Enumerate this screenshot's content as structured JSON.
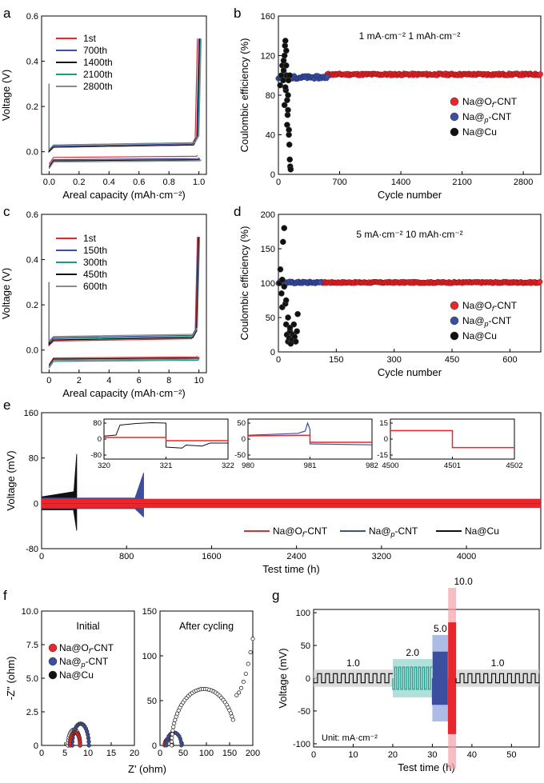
{
  "figure": {
    "panels": [
      "a",
      "b",
      "c",
      "d",
      "e",
      "f",
      "g"
    ]
  },
  "chart_data": [
    {
      "id": "a",
      "type": "line",
      "xlabel": "Areal capacity (mAh·cm⁻²)",
      "ylabel": "Voltage (V)",
      "xlim": [
        -0.05,
        1.05
      ],
      "ylim": [
        -0.1,
        0.6
      ],
      "xticks": [
        0.0,
        0.2,
        0.4,
        0.6,
        0.8,
        1.0
      ],
      "xtick_labels": [
        "0.0",
        "0.2",
        "0.4",
        "0.6",
        "0.8",
        "1.0"
      ],
      "yticks": [
        0.0,
        0.2,
        0.4,
        0.6
      ],
      "ytick_labels": [
        "0.0",
        "0.2",
        "0.4",
        "0.6"
      ],
      "legend": "top-left",
      "series": [
        {
          "name": "1st",
          "color": "#e8262b",
          "plating": -0.025,
          "stripping": 0.02,
          "end": 0.99
        },
        {
          "name": "700th",
          "color": "#3b4ea0",
          "plating": -0.035,
          "stripping": 0.025,
          "end": 1.0
        },
        {
          "name": "1400th",
          "color": "#111111",
          "plating": -0.04,
          "stripping": 0.02,
          "end": 1.005
        },
        {
          "name": "2100th",
          "color": "#1a9a8a",
          "plating": -0.045,
          "stripping": 0.03,
          "end": 1.01
        },
        {
          "name": "2800th",
          "color": "#8a8a8a",
          "plating": -0.045,
          "stripping": 0.03,
          "end": 1.015
        }
      ]
    },
    {
      "id": "b",
      "type": "scatter",
      "xlabel": "Cycle number",
      "ylabel": "Coulombic efficiency (%)",
      "xlim": [
        0,
        3000
      ],
      "ylim": [
        0,
        160
      ],
      "xticks": [
        0,
        700,
        1400,
        2100,
        2800
      ],
      "xtick_labels": [
        "0",
        "700",
        "1400",
        "2100",
        "2800"
      ],
      "yticks": [
        0,
        40,
        80,
        120,
        160
      ],
      "ytick_labels": [
        "0",
        "40",
        "80",
        "120",
        "160"
      ],
      "annotation": "1 mA·cm⁻²  1 mAh·cm⁻²",
      "legend": "bottom-right",
      "series": [
        {
          "name_main": "Na@O",
          "name_sub": "f",
          "name_tail": "-CNT",
          "color": "#e8262b",
          "x_range": [
            560,
            3000
          ],
          "y": 101
        },
        {
          "name_main": "Na@",
          "name_sub": "p",
          "name_tail": "-CNT",
          "italic_main": "p",
          "color": "#3b4ea0",
          "x_range": [
            0,
            560
          ],
          "y": 98
        },
        {
          "name_main": "Na@Cu",
          "color": "#111111",
          "x": [
            20,
            35,
            45,
            55,
            60,
            70,
            75,
            80,
            85,
            90,
            95,
            100,
            105,
            110,
            115,
            120,
            125,
            130,
            135,
            140,
            60,
            70,
            80,
            90,
            100,
            110,
            120,
            130
          ],
          "y": [
            90,
            100,
            110,
            95,
            105,
            120,
            130,
            135,
            85,
            110,
            100,
            75,
            60,
            80,
            95,
            40,
            30,
            15,
            8,
            5,
            115,
            70,
            88,
            125,
            50,
            65,
            45,
            100
          ]
        }
      ]
    },
    {
      "id": "c",
      "type": "line",
      "xlabel": "Areal capacity (mAh·cm⁻²)",
      "ylabel": "Voltage (V)",
      "xlim": [
        -0.5,
        10.5
      ],
      "ylim": [
        -0.1,
        0.6
      ],
      "xticks": [
        0,
        2,
        4,
        6,
        8,
        10
      ],
      "xtick_labels": [
        "0",
        "2",
        "4",
        "6",
        "8",
        "10"
      ],
      "yticks": [
        0.0,
        0.2,
        0.4,
        0.6
      ],
      "ytick_labels": [
        "0.0",
        "0.2",
        "0.4",
        "0.6"
      ],
      "legend": "top-left",
      "series": [
        {
          "name": "1st",
          "color": "#e8262b",
          "plating": -0.035,
          "stripping": 0.04,
          "end": 9.9
        },
        {
          "name": "150th",
          "color": "#3b4ea0",
          "plating": -0.045,
          "stripping": 0.055,
          "end": 9.95
        },
        {
          "name": "300th",
          "color": "#1a9a8a",
          "plating": -0.05,
          "stripping": 0.05,
          "end": 10.0
        },
        {
          "name": "450th",
          "color": "#111111",
          "plating": -0.04,
          "stripping": 0.045,
          "end": 10.0
        },
        {
          "name": "600th",
          "color": "#8a8a8a",
          "plating": -0.045,
          "stripping": 0.06,
          "end": 10.05
        }
      ]
    },
    {
      "id": "d",
      "type": "scatter",
      "xlabel": "Cycle number",
      "ylabel": "Coulombic efficiency (%)",
      "xlim": [
        0,
        680
      ],
      "ylim": [
        0,
        200
      ],
      "xticks": [
        0,
        150,
        300,
        450,
        600
      ],
      "xtick_labels": [
        "0",
        "150",
        "300",
        "450",
        "600"
      ],
      "yticks": [
        0,
        50,
        100,
        150,
        200
      ],
      "ytick_labels": [
        "0",
        "50",
        "100",
        "150",
        "200"
      ],
      "annotation": "5 mA·cm⁻²  10 mAh·cm⁻²",
      "legend": "bottom-right",
      "series": [
        {
          "name_main": "Na@O",
          "name_sub": "f",
          "name_tail": "-CNT",
          "color": "#e8262b",
          "x_range": [
            110,
            680
          ],
          "y": 101
        },
        {
          "name_main": "Na@",
          "name_sub": "p",
          "name_tail": "-CNT",
          "color": "#3b4ea0",
          "x_range": [
            0,
            110
          ],
          "y": 101
        },
        {
          "name_main": "Na@Cu",
          "color": "#111111",
          "x": [
            3,
            5,
            8,
            10,
            12,
            15,
            18,
            20,
            22,
            25,
            28,
            30,
            32,
            35,
            38,
            40,
            42,
            45,
            48,
            50,
            10,
            15,
            20,
            25,
            30
          ],
          "y": [
            100,
            120,
            85,
            65,
            160,
            180,
            70,
            40,
            25,
            15,
            20,
            30,
            12,
            18,
            25,
            40,
            22,
            15,
            30,
            55,
            105,
            95,
            75,
            50,
            35
          ]
        }
      ]
    },
    {
      "id": "e",
      "type": "line",
      "xlabel": "Test time (h)",
      "ylabel": "Voltage (mV)",
      "xlim": [
        0,
        4700
      ],
      "ylim": [
        -80,
        160
      ],
      "xticks": [
        0,
        800,
        1600,
        2400,
        3200,
        4000
      ],
      "xtick_labels": [
        "0",
        "800",
        "1600",
        "2400",
        "3200",
        "4000"
      ],
      "yticks": [
        -80,
        0,
        80,
        160
      ],
      "ytick_labels": [
        "-80",
        "0",
        "80",
        "160"
      ],
      "legend": "bottom",
      "series": [
        {
          "name_main": "Na@O",
          "name_sub": "f",
          "name_tail": "-CNT",
          "color": "#e8262b",
          "x_range": [
            0,
            4700
          ]
        },
        {
          "name_main": "Na@",
          "name_sub": "p",
          "name_tail": "-CNT",
          "color": "#3b4ea0",
          "x_range": [
            0,
            960
          ]
        },
        {
          "name_main": "Na@Cu",
          "color": "#111111",
          "x_range": [
            0,
            330
          ]
        }
      ],
      "insets": [
        {
          "xticks": [
            320,
            321,
            322
          ],
          "yticks": [
            80,
            0,
            -80
          ],
          "ytick_labels": [
            "80",
            "0",
            "-80"
          ]
        },
        {
          "xticks": [
            980,
            981,
            982
          ],
          "yticks": [
            50,
            0,
            -50
          ],
          "ytick_labels": [
            "50",
            "0",
            "-50"
          ]
        },
        {
          "xticks": [
            4500,
            4501,
            4502
          ],
          "yticks": [
            15,
            0,
            -15
          ],
          "ytick_labels": [
            "15",
            "0",
            "-15"
          ]
        }
      ]
    },
    {
      "id": "f",
      "type": "scatter",
      "xlabel": "Z' (ohm)",
      "ylabel": "-Z'' (ohm)",
      "left": {
        "title": "Initial",
        "xlim": [
          0,
          20
        ],
        "ylim": [
          0,
          10
        ],
        "xticks": [
          0,
          5,
          10,
          15,
          20
        ],
        "xtick_labels": [
          "0",
          "5",
          "10",
          "15",
          "20"
        ],
        "yticks": [
          0,
          2.5,
          5.0,
          7.5,
          10.0
        ],
        "ytick_labels": [
          "0",
          "2.5",
          "5.0",
          "7.5",
          "10.0"
        ],
        "series": [
          {
            "name_main": "Na@O",
            "name_sub": "f",
            "name_tail": "-CNT",
            "color": "#e8262b",
            "center": 7.2,
            "radius": 1.1
          },
          {
            "name_main": "Na@",
            "name_sub": "p",
            "name_tail": "-CNT",
            "color": "#3b4ea0",
            "center": 8.4,
            "radius": 1.8
          },
          {
            "name_main": "Na@Cu",
            "color": "#111111",
            "center": 7.0,
            "radius": 1.3
          }
        ]
      },
      "right": {
        "title": "After cycling",
        "xlim": [
          0,
          200
        ],
        "ylim": [
          0,
          150
        ],
        "xticks": [
          0,
          50,
          100,
          150,
          200
        ],
        "xtick_labels": [
          "0",
          "50",
          "100",
          "150",
          "200"
        ],
        "yticks": [
          0,
          50,
          100,
          150
        ],
        "ytick_labels": [
          "0",
          "50",
          "100",
          "150"
        ],
        "series": [
          {
            "color": "#e8262b",
            "center": 18,
            "radius": 8
          },
          {
            "color": "#3b4ea0",
            "center": 30,
            "radius": 16
          },
          {
            "color": "#111111",
            "center": 95,
            "radius": 70
          }
        ]
      }
    },
    {
      "id": "g",
      "type": "line",
      "xlabel": "Test time (h)",
      "ylabel": "Voltage (mV)",
      "xlim": [
        0,
        57
      ],
      "ylim": [
        -105,
        105
      ],
      "xticks": [
        0,
        10,
        20,
        30,
        40,
        50
      ],
      "xtick_labels": [
        "0",
        "10",
        "20",
        "30",
        "40",
        "50"
      ],
      "yticks": [
        -100,
        -50,
        0,
        50,
        100
      ],
      "ytick_labels": [
        "-100",
        "-50",
        "0",
        "50",
        "100"
      ],
      "unit_note": "Unit: mA·cm⁻²",
      "segments": [
        {
          "label": "1.0",
          "x0": 0,
          "x1": 20,
          "amp": 7,
          "period": 2,
          "color": "#000000",
          "band": "#cccccc"
        },
        {
          "label": "2.0",
          "x0": 20,
          "x1": 30,
          "amp": 17,
          "period": 1,
          "color": "#1a9a8a",
          "band": "#8fd3c9"
        },
        {
          "label": "5.0",
          "x0": 30,
          "x1": 34,
          "amp": 40,
          "period": 0.4,
          "color": "#3b4ea0",
          "band": "#8aa0d8"
        },
        {
          "label": "10.0",
          "x0": 34,
          "x1": 36,
          "amp": 85,
          "period": 0.1,
          "color": "#e8262b",
          "band": "#f5a0a8"
        },
        {
          "label": "1.0",
          "x0": 36,
          "x1": 57,
          "amp": 7,
          "period": 2,
          "color": "#000000",
          "band": "#cccccc"
        }
      ]
    }
  ]
}
